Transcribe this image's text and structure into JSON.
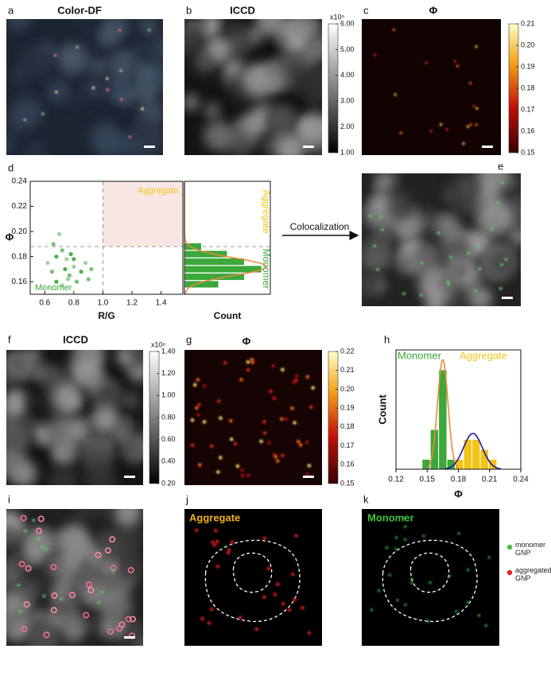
{
  "panels": [
    {
      "letter": "a",
      "title": "Color-DF"
    },
    {
      "letter": "b",
      "title": "ICCD",
      "colorbar": {
        "label": "x10⁵",
        "ylim": [
          1,
          6
        ],
        "yticks": [
          {
            "value": 1,
            "label": "1.00"
          },
          {
            "value": 2,
            "label": "2.00"
          },
          {
            "value": 3,
            "label": "3.00"
          },
          {
            "value": 4,
            "label": "4.00"
          },
          {
            "value": 5,
            "label": "5.00"
          },
          {
            "value": 6,
            "label": "6.00"
          }
        ]
      }
    },
    {
      "letter": "c",
      "title": "Φ",
      "colorbar": {
        "ylim": [
          0.15,
          0.21
        ],
        "yticks": [
          0.15,
          0.16,
          0.17,
          0.18,
          0.19,
          {
            "value": 0.2,
            "label": "0.20"
          },
          0.21
        ]
      }
    },
    {
      "letter": "e"
    },
    {
      "letter": "f",
      "title": "ICCD",
      "colorbar": {
        "label": "x10⁶",
        "ylim": [
          0.2,
          1.4
        ],
        "yticks": [
          {
            "value": 0.2,
            "label": "0.20"
          },
          {
            "value": 0.4,
            "label": "0.40"
          },
          {
            "value": 0.6,
            "label": "0.60"
          },
          {
            "value": 0.8,
            "label": "0.80"
          },
          {
            "value": 1,
            "label": "1.00"
          },
          {
            "value": 1.2,
            "label": "1.20"
          },
          {
            "value": 1.4,
            "label": "1.40"
          }
        ]
      }
    },
    {
      "letter": "g",
      "title": "Φ",
      "colorbar": {
        "ylim": [
          0.15,
          0.22
        ],
        "yticks": [
          0.15,
          0.16,
          0.17,
          0.18,
          0.19,
          {
            "value": 0.2,
            "label": "0.20"
          },
          0.21,
          0.22
        ]
      }
    },
    {
      "letter": "i"
    },
    {
      "letter": "j",
      "title": "Aggregate"
    },
    {
      "letter": "k",
      "title": "Monomer"
    }
  ],
  "arrow_label": "Colocalization",
  "legend": [
    {
      "label": "monomer GNP",
      "color": "#3fc43f"
    },
    {
      "label": "aggregated GNP",
      "color": "#e52222"
    }
  ],
  "chart_data": [
    {
      "type": "scatter",
      "letter": "d",
      "x_label": "R/G",
      "y_label": "Φ",
      "xlim": [
        0.5,
        1.55
      ],
      "xticks": [
        0.6,
        0.8,
        {
          "value": 1,
          "label": "1.0"
        },
        1.2,
        1.4
      ],
      "ylim": [
        0.15,
        0.24
      ],
      "yticks": [
        0.16,
        0.18,
        {
          "value": 0.2,
          "label": "0.20"
        },
        0.22,
        0.24
      ],
      "color": "#3aa83a",
      "vline": 1,
      "hline": 0.188,
      "annotations": [
        {
          "text": "Aggregate",
          "color": "#f2c418"
        },
        {
          "text": "Monomer",
          "color": "#3aa83a"
        }
      ],
      "x": [
        0.62,
        0.65,
        0.68,
        0.7,
        0.72,
        0.74,
        0.75,
        0.77,
        0.78,
        0.8,
        0.82,
        0.85,
        0.88,
        0.9,
        0.68,
        0.72,
        0.66,
        0.8,
        0.76,
        0.92
      ],
      "y": [
        0.175,
        0.168,
        0.16,
        0.198,
        0.185,
        0.17,
        0.178,
        0.165,
        0.182,
        0.172,
        0.16,
        0.168,
        0.175,
        0.162,
        0.18,
        0.157,
        0.19,
        0.178,
        0.162,
        0.17
      ]
    },
    {
      "type": "hbar-histogram",
      "x_label": "Count",
      "xlim": [
        0,
        10
      ],
      "ylim": [
        0.15,
        0.24
      ],
      "bins": [
        0.155,
        0.161,
        0.167,
        0.173,
        0.179,
        0.185,
        0.191
      ],
      "values": [
        4,
        7,
        9,
        7,
        5,
        2
      ],
      "color": "#3aa83a",
      "fit": {
        "mean": 0.172,
        "sd": 0.007,
        "peak": 9.5,
        "color": "#f0883a"
      },
      "annotations": [
        {
          "text": "Aggregate",
          "color": "#f2c418"
        },
        {
          "text": "Monomer",
          "color": "#3aa83a"
        }
      ]
    },
    {
      "type": "histogram",
      "letter": "h",
      "x_label": "Φ",
      "y_label": "Count",
      "xlim": [
        0.12,
        0.24
      ],
      "xticks": [
        0.12,
        0.15,
        0.18,
        0.21,
        0.24
      ],
      "ylim": [
        0,
        12
      ],
      "series": [
        {
          "name": "Monomer",
          "color": "#3aa83a",
          "bins": [
            0.145,
            0.153,
            0.161,
            0.169,
            0.177
          ],
          "values": [
            1,
            4,
            10,
            1
          ],
          "fit": {
            "mean": 0.165,
            "sd": 0.005,
            "peak": 11,
            "color": "#f0883a"
          }
        },
        {
          "name": "Aggregate",
          "color": "#f2c418",
          "bins": [
            0.177,
            0.185,
            0.193,
            0.201,
            0.209,
            0.217
          ],
          "values": [
            1,
            3,
            3,
            2,
            1
          ],
          "fit": {
            "mean": 0.194,
            "sd": 0.009,
            "peak": 3.6,
            "color": "#1a1aa0"
          }
        }
      ]
    }
  ]
}
